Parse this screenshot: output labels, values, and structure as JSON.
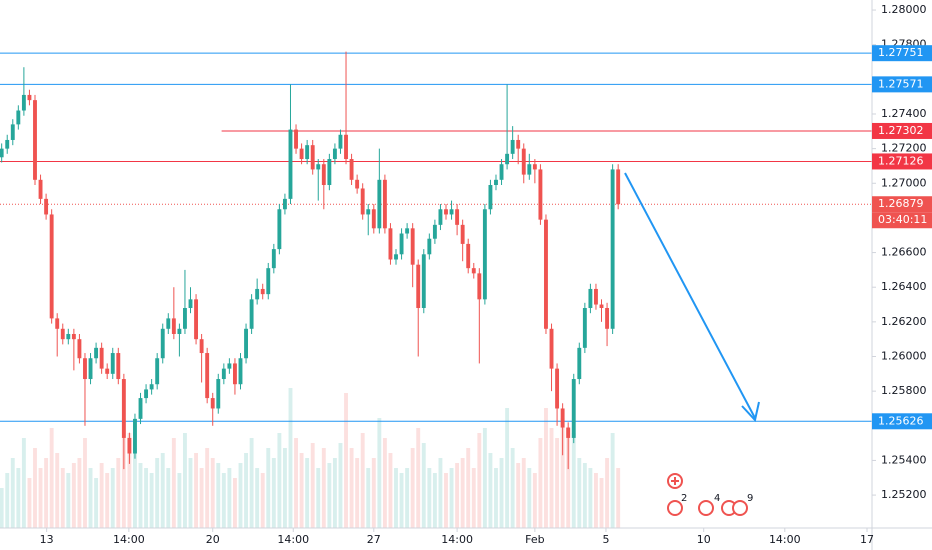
{
  "chart_data": {
    "type": "candlestick",
    "up_color": "#26a69a",
    "down_color": "#ef5350",
    "xlim": [
      -0.3,
      156.7
    ],
    "ylim": [
      1.2501,
      1.28058
    ],
    "xticks": [
      {
        "value": 8.1,
        "label": "13"
      },
      {
        "value": 22.9,
        "label": "14:00"
      },
      {
        "value": 38,
        "label": "20"
      },
      {
        "value": 52.5,
        "label": "14:00"
      },
      {
        "value": 67,
        "label": "27"
      },
      {
        "value": 82,
        "label": "14:00"
      },
      {
        "value": 96,
        "label": "Feb"
      },
      {
        "value": 108.8,
        "label": "5"
      },
      {
        "value": 126.4,
        "label": "10"
      },
      {
        "value": 141,
        "label": "14:00"
      },
      {
        "value": 155.8,
        "label": "17"
      }
    ],
    "yticks": [
      {
        "value": 1.28,
        "label": "1.28000"
      },
      {
        "value": 1.278,
        "label": "1.27800"
      },
      {
        "value": 1.274,
        "label": "1.27400"
      },
      {
        "value": 1.272,
        "label": "1.27200"
      },
      {
        "value": 1.27,
        "label": "1.27000"
      },
      {
        "value": 1.266,
        "label": "1.26600"
      },
      {
        "value": 1.264,
        "label": "1.26400"
      },
      {
        "value": 1.262,
        "label": "1.26200"
      },
      {
        "value": 1.26,
        "label": "1.26000"
      },
      {
        "value": 1.258,
        "label": "1.25800"
      },
      {
        "value": 1.254,
        "label": "1.25400"
      },
      {
        "value": 1.252,
        "label": "1.25200"
      }
    ],
    "open": [
      1.2715,
      1.272,
      1.2725,
      1.2734,
      1.2742,
      1.2751,
      1.2748,
      1.2702,
      1.2691,
      1.2682,
      1.2622,
      1.2616,
      1.261,
      1.2613,
      1.261,
      1.2599,
      1.2587,
      1.2599,
      1.2605,
      1.2593,
      1.259,
      1.2602,
      1.2587,
      1.2553,
      1.2544,
      1.2564,
      1.2576,
      1.2581,
      1.2584,
      1.2599,
      1.2616,
      1.2622,
      1.2613,
      1.2616,
      1.2628,
      1.2633,
      1.261,
      1.2602,
      1.2576,
      1.257,
      1.2587,
      1.2593,
      1.2596,
      1.2584,
      1.2599,
      1.2616,
      1.2633,
      1.2639,
      1.2636,
      1.2651,
      1.2662,
      1.2685,
      1.2691,
      1.2731,
      1.272,
      1.2714,
      1.2722,
      1.2708,
      1.2711,
      1.2699,
      1.2714,
      1.272,
      1.2728,
      1.2714,
      1.2702,
      1.2697,
      1.2682,
      1.2685,
      1.2674,
      1.2702,
      1.2674,
      1.2656,
      1.2659,
      1.2671,
      1.2674,
      1.2653,
      1.2628,
      1.2659,
      1.2668,
      1.2676,
      1.2685,
      1.2682,
      1.2685,
      1.2676,
      1.2665,
      1.2651,
      1.2648,
      1.2633,
      1.2685,
      1.2699,
      1.2702,
      1.2711,
      1.2717,
      1.2725,
      1.272,
      1.2705,
      1.2711,
      1.2708,
      1.2679,
      1.2616,
      1.2593,
      1.257,
      1.2559,
      1.2553,
      1.2587,
      1.2605,
      1.2628,
      1.2639,
      1.263,
      1.2628,
      1.2616,
      1.2708
    ],
    "high": [
      1.2723,
      1.2728,
      1.2737,
      1.2745,
      1.2767,
      1.2754,
      1.2751,
      1.2705,
      1.2694,
      1.2685,
      1.2625,
      1.2619,
      1.2616,
      1.2616,
      1.2613,
      1.2602,
      1.2602,
      1.2608,
      1.2608,
      1.2596,
      1.2605,
      1.2605,
      1.259,
      1.2556,
      1.2567,
      1.2579,
      1.2584,
      1.2587,
      1.2602,
      1.2619,
      1.2625,
      1.264,
      1.2619,
      1.265,
      1.264,
      1.2636,
      1.2613,
      1.2605,
      1.2579,
      1.259,
      1.2596,
      1.2599,
      1.2599,
      1.2602,
      1.2619,
      1.2636,
      1.2645,
      1.2642,
      1.2654,
      1.2665,
      1.2688,
      1.2694,
      1.2757,
      1.2734,
      1.2723,
      1.2725,
      1.2725,
      1.2714,
      1.2714,
      1.2717,
      1.2723,
      1.2731,
      1.2776,
      1.2717,
      1.2705,
      1.27,
      1.2688,
      1.2688,
      1.272,
      1.2705,
      1.2677,
      1.2662,
      1.2674,
      1.2677,
      1.2677,
      1.2656,
      1.2662,
      1.2671,
      1.2679,
      1.2688,
      1.2688,
      1.269,
      1.2688,
      1.2679,
      1.2668,
      1.2654,
      1.2651,
      1.2688,
      1.2702,
      1.2705,
      1.2714,
      1.2757,
      1.2733,
      1.2728,
      1.2723,
      1.2717,
      1.2714,
      1.2711,
      1.2682,
      1.2619,
      1.2596,
      1.2573,
      1.2562,
      1.259,
      1.2608,
      1.2631,
      1.2642,
      1.2642,
      1.2633,
      1.2631,
      1.2711,
      1.2711
    ],
    "low": [
      1.2712,
      1.2717,
      1.2722,
      1.2731,
      1.2739,
      1.2745,
      1.2699,
      1.2688,
      1.2679,
      1.2619,
      1.26,
      1.2607,
      1.2607,
      1.2592,
      1.2596,
      1.256,
      1.2584,
      1.2596,
      1.259,
      1.2587,
      1.2587,
      1.2584,
      1.2535,
      1.2538,
      1.2541,
      1.2561,
      1.2573,
      1.2578,
      1.2581,
      1.2596,
      1.2613,
      1.261,
      1.26,
      1.2613,
      1.2625,
      1.2607,
      1.2585,
      1.2573,
      1.256,
      1.2567,
      1.2584,
      1.259,
      1.2578,
      1.2581,
      1.2596,
      1.2613,
      1.263,
      1.2633,
      1.2633,
      1.2648,
      1.2659,
      1.2682,
      1.2688,
      1.2717,
      1.2711,
      1.2711,
      1.2705,
      1.269,
      1.2685,
      1.2696,
      1.2711,
      1.2717,
      1.2711,
      1.2699,
      1.2694,
      1.2679,
      1.267,
      1.2671,
      1.2671,
      1.2671,
      1.2653,
      1.2653,
      1.2656,
      1.2668,
      1.264,
      1.26,
      1.2625,
      1.2656,
      1.2665,
      1.2673,
      1.2679,
      1.2679,
      1.267,
      1.2655,
      1.2648,
      1.2645,
      1.2596,
      1.263,
      1.2682,
      1.2696,
      1.2699,
      1.2708,
      1.2714,
      1.2711,
      1.27,
      1.2702,
      1.27,
      1.2676,
      1.2613,
      1.258,
      1.256,
      1.2543,
      1.2535,
      1.255,
      1.2584,
      1.2602,
      1.2625,
      1.2627,
      1.262,
      1.2606,
      1.2613,
      1.2685
    ],
    "close": [
      1.272,
      1.2725,
      1.2734,
      1.2742,
      1.2751,
      1.2748,
      1.2702,
      1.2691,
      1.2682,
      1.2622,
      1.2616,
      1.261,
      1.2613,
      1.261,
      1.2599,
      1.2587,
      1.2599,
      1.2605,
      1.2593,
      1.259,
      1.2602,
      1.2587,
      1.2553,
      1.2544,
      1.2564,
      1.2576,
      1.2581,
      1.2584,
      1.2599,
      1.2616,
      1.2622,
      1.2613,
      1.2616,
      1.2628,
      1.2633,
      1.261,
      1.2602,
      1.2576,
      1.257,
      1.2587,
      1.2593,
      1.2596,
      1.2584,
      1.2599,
      1.2616,
      1.2633,
      1.2639,
      1.2636,
      1.2651,
      1.2662,
      1.2685,
      1.2691,
      1.2731,
      1.272,
      1.2714,
      1.2722,
      1.2708,
      1.2711,
      1.2699,
      1.2714,
      1.272,
      1.2728,
      1.2714,
      1.2702,
      1.2697,
      1.2682,
      1.2685,
      1.2674,
      1.2702,
      1.2674,
      1.2656,
      1.2659,
      1.2671,
      1.2674,
      1.2653,
      1.2628,
      1.2659,
      1.2668,
      1.2676,
      1.2685,
      1.2682,
      1.2685,
      1.2676,
      1.2665,
      1.2651,
      1.2648,
      1.2633,
      1.2685,
      1.2699,
      1.2702,
      1.2711,
      1.2717,
      1.2725,
      1.272,
      1.2705,
      1.2711,
      1.2708,
      1.2679,
      1.2616,
      1.2593,
      1.257,
      1.2559,
      1.2553,
      1.2587,
      1.2605,
      1.2628,
      1.2639,
      1.263,
      1.2628,
      1.2616,
      1.2708,
      1.26879
    ],
    "volume": [
      40,
      55,
      70,
      60,
      90,
      50,
      80,
      60,
      70,
      100,
      75,
      60,
      55,
      65,
      70,
      90,
      60,
      50,
      65,
      55,
      60,
      70,
      110,
      95,
      80,
      65,
      60,
      55,
      70,
      75,
      60,
      90,
      55,
      95,
      70,
      75,
      60,
      80,
      70,
      65,
      55,
      60,
      50,
      65,
      75,
      90,
      60,
      55,
      80,
      70,
      95,
      80,
      140,
      90,
      75,
      70,
      85,
      60,
      80,
      65,
      70,
      85,
      135,
      80,
      70,
      95,
      60,
      70,
      110,
      90,
      75,
      60,
      55,
      60,
      80,
      100,
      85,
      60,
      55,
      70,
      55,
      60,
      65,
      70,
      80,
      60,
      95,
      100,
      75,
      60,
      70,
      120,
      80,
      65,
      70,
      60,
      55,
      90,
      120,
      100,
      90,
      110,
      100,
      95,
      70,
      65,
      60,
      55,
      50,
      70,
      95,
      60
    ],
    "levels": [
      {
        "value": 1.27751,
        "color": "#2196f3"
      },
      {
        "value": 1.27571,
        "color": "#2196f3"
      },
      {
        "value": 1.27302,
        "color": "#f23645",
        "from": 39.6
      },
      {
        "value": 1.27126,
        "color": "#f23645"
      },
      {
        "value": 1.25626,
        "color": "#2196f3"
      }
    ],
    "countdown": "03:40:11",
    "event_counts": [
      "2",
      "4",
      "9"
    ]
  }
}
